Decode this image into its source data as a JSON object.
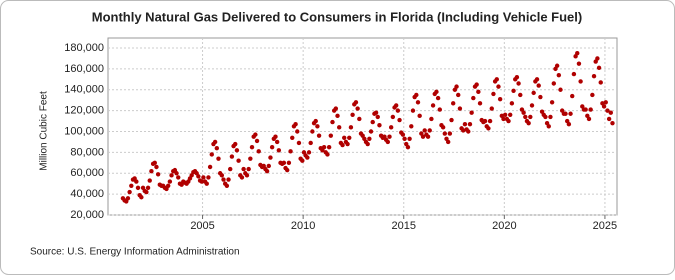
{
  "chart_data": {
    "type": "scatter",
    "title": "Monthly Natural Gas Delivered to Consumers in Florida (Including Vehicle Fuel)",
    "y_label": "Million Cubic Feet",
    "source": "Source: U.S. Energy Information Administration",
    "xlim": [
      2000.3,
      2025.6
    ],
    "xticks": [
      2005,
      2010,
      2015,
      2020,
      2025
    ],
    "ylim": [
      20000,
      180000
    ],
    "yticks": [
      {
        "value": 20000,
        "label": "20,000"
      },
      {
        "value": 40000,
        "label": "40,000"
      },
      {
        "value": 60000,
        "label": "60,000"
      },
      {
        "value": 80000,
        "label": "80,000"
      },
      {
        "value": 100000,
        "label": "100,000"
      },
      {
        "value": 120000,
        "label": "120,000"
      },
      {
        "value": 140000,
        "label": "140,000"
      },
      {
        "value": 160000,
        "label": "160,000"
      },
      {
        "value": 180000,
        "label": "180,000"
      }
    ],
    "grid": true,
    "x": [
      "2001-01",
      "2001-02",
      "2001-03",
      "2001-04",
      "2001-05",
      "2001-06",
      "2001-07",
      "2001-08",
      "2001-09",
      "2001-10",
      "2001-11",
      "2001-12",
      "2002-01",
      "2002-02",
      "2002-03",
      "2002-04",
      "2002-05",
      "2002-06",
      "2002-07",
      "2002-08",
      "2002-09",
      "2002-10",
      "2002-11",
      "2002-12",
      "2003-01",
      "2003-02",
      "2003-03",
      "2003-04",
      "2003-05",
      "2003-06",
      "2003-07",
      "2003-08",
      "2003-09",
      "2003-10",
      "2003-11",
      "2003-12",
      "2004-01",
      "2004-02",
      "2004-03",
      "2004-04",
      "2004-05",
      "2004-06",
      "2004-07",
      "2004-08",
      "2004-09",
      "2004-10",
      "2004-11",
      "2004-12",
      "2005-01",
      "2005-02",
      "2005-03",
      "2005-04",
      "2005-05",
      "2005-06",
      "2005-07",
      "2005-08",
      "2005-09",
      "2005-10",
      "2005-11",
      "2005-12",
      "2006-01",
      "2006-02",
      "2006-03",
      "2006-04",
      "2006-05",
      "2006-06",
      "2006-07",
      "2006-08",
      "2006-09",
      "2006-10",
      "2006-11",
      "2006-12",
      "2007-01",
      "2007-02",
      "2007-03",
      "2007-04",
      "2007-05",
      "2007-06",
      "2007-07",
      "2007-08",
      "2007-09",
      "2007-10",
      "2007-11",
      "2007-12",
      "2008-01",
      "2008-02",
      "2008-03",
      "2008-04",
      "2008-05",
      "2008-06",
      "2008-07",
      "2008-08",
      "2008-09",
      "2008-10",
      "2008-11",
      "2008-12",
      "2009-01",
      "2009-02",
      "2009-03",
      "2009-04",
      "2009-05",
      "2009-06",
      "2009-07",
      "2009-08",
      "2009-09",
      "2009-10",
      "2009-11",
      "2009-12",
      "2010-01",
      "2010-02",
      "2010-03",
      "2010-04",
      "2010-05",
      "2010-06",
      "2010-07",
      "2010-08",
      "2010-09",
      "2010-10",
      "2010-11",
      "2010-12",
      "2011-01",
      "2011-02",
      "2011-03",
      "2011-04",
      "2011-05",
      "2011-06",
      "2011-07",
      "2011-08",
      "2011-09",
      "2011-10",
      "2011-11",
      "2011-12",
      "2012-01",
      "2012-02",
      "2012-03",
      "2012-04",
      "2012-05",
      "2012-06",
      "2012-07",
      "2012-08",
      "2012-09",
      "2012-10",
      "2012-11",
      "2012-12",
      "2013-01",
      "2013-02",
      "2013-03",
      "2013-04",
      "2013-05",
      "2013-06",
      "2013-07",
      "2013-08",
      "2013-09",
      "2013-10",
      "2013-11",
      "2013-12",
      "2014-01",
      "2014-02",
      "2014-03",
      "2014-04",
      "2014-05",
      "2014-06",
      "2014-07",
      "2014-08",
      "2014-09",
      "2014-10",
      "2014-11",
      "2014-12",
      "2015-01",
      "2015-02",
      "2015-03",
      "2015-04",
      "2015-05",
      "2015-06",
      "2015-07",
      "2015-08",
      "2015-09",
      "2015-10",
      "2015-11",
      "2015-12",
      "2016-01",
      "2016-02",
      "2016-03",
      "2016-04",
      "2016-05",
      "2016-06",
      "2016-07",
      "2016-08",
      "2016-09",
      "2016-10",
      "2016-11",
      "2016-12",
      "2017-01",
      "2017-02",
      "2017-03",
      "2017-04",
      "2017-05",
      "2017-06",
      "2017-07",
      "2017-08",
      "2017-09",
      "2017-10",
      "2017-11",
      "2017-12",
      "2018-01",
      "2018-02",
      "2018-03",
      "2018-04",
      "2018-05",
      "2018-06",
      "2018-07",
      "2018-08",
      "2018-09",
      "2018-10",
      "2018-11",
      "2018-12",
      "2019-01",
      "2019-02",
      "2019-03",
      "2019-04",
      "2019-05",
      "2019-06",
      "2019-07",
      "2019-08",
      "2019-09",
      "2019-10",
      "2019-11",
      "2019-12",
      "2020-01",
      "2020-02",
      "2020-03",
      "2020-04",
      "2020-05",
      "2020-06",
      "2020-07",
      "2020-08",
      "2020-09",
      "2020-10",
      "2020-11",
      "2020-12",
      "2021-01",
      "2021-02",
      "2021-03",
      "2021-04",
      "2021-05",
      "2021-06",
      "2021-07",
      "2021-08",
      "2021-09",
      "2021-10",
      "2021-11",
      "2021-12",
      "2022-01",
      "2022-02",
      "2022-03",
      "2022-04",
      "2022-05",
      "2022-06",
      "2022-07",
      "2022-08",
      "2022-09",
      "2022-10",
      "2022-11",
      "2022-12",
      "2023-01",
      "2023-02",
      "2023-03",
      "2023-04",
      "2023-05",
      "2023-06",
      "2023-07",
      "2023-08",
      "2023-09",
      "2023-10",
      "2023-11",
      "2023-12",
      "2024-01",
      "2024-02",
      "2024-03",
      "2024-04",
      "2024-05",
      "2024-06",
      "2024-07",
      "2024-08",
      "2024-09",
      "2024-10",
      "2024-11",
      "2024-12",
      "2025-01",
      "2025-02",
      "2025-03",
      "2025-04",
      "2025-05"
    ],
    "series": [
      {
        "color": "#b00000",
        "values": [
          36000,
          34000,
          33000,
          36000,
          42000,
          48000,
          54000,
          55000,
          52000,
          46000,
          39000,
          37000,
          46000,
          43000,
          42000,
          46000,
          53000,
          62000,
          69000,
          70000,
          66000,
          59000,
          49000,
          48000,
          48000,
          46000,
          45000,
          48000,
          52000,
          58000,
          62000,
          63000,
          60000,
          56000,
          50000,
          49000,
          52000,
          51000,
          50000,
          52000,
          55000,
          58000,
          61000,
          62000,
          60000,
          57000,
          53000,
          52000,
          56000,
          52000,
          50000,
          56000,
          66000,
          78000,
          88000,
          90000,
          84000,
          74000,
          60000,
          58000,
          54000,
          50000,
          48000,
          54000,
          64000,
          76000,
          86000,
          88000,
          82000,
          72000,
          58000,
          56000,
          64000,
          60000,
          58000,
          64000,
          74000,
          85000,
          95000,
          97000,
          91000,
          81000,
          68000,
          66000,
          67000,
          64000,
          62000,
          67000,
          75000,
          85000,
          93000,
          95000,
          90000,
          82000,
          70000,
          69000,
          70000,
          65000,
          63000,
          70000,
          81000,
          94000,
          105000,
          107000,
          100000,
          89000,
          74000,
          72000,
          80000,
          77000,
          75000,
          80000,
          89000,
          100000,
          108000,
          110000,
          105000,
          96000,
          84000,
          82000,
          85000,
          80000,
          78000,
          85000,
          96000,
          109000,
          120000,
          122000,
          115000,
          104000,
          89000,
          87000,
          94000,
          90000,
          88000,
          94000,
          104000,
          116000,
          126000,
          128000,
          122000,
          112000,
          98000,
          96000,
          93000,
          90000,
          88000,
          93000,
          100000,
          109000,
          117000,
          118000,
          114000,
          106000,
          96000,
          94000,
          95000,
          92000,
          90000,
          95000,
          104000,
          114000,
          123000,
          125000,
          120000,
          111000,
          99000,
          97000,
          93000,
          88000,
          85000,
          93000,
          105000,
          120000,
          133000,
          135000,
          128000,
          115000,
          98000,
          95000,
          101000,
          97000,
          95000,
          101000,
          112000,
          125000,
          136000,
          138000,
          132000,
          121000,
          106000,
          104000,
          98000,
          93000,
          90000,
          98000,
          111000,
          127000,
          140000,
          143000,
          135000,
          122000,
          103000,
          101000,
          107000,
          102000,
          100000,
          107000,
          118000,
          132000,
          143000,
          145000,
          138000,
          127000,
          111000,
          109000,
          110000,
          105000,
          103000,
          110000,
          122000,
          136000,
          148000,
          150000,
          143000,
          131000,
          115000,
          112000,
          116000,
          112000,
          110000,
          116000,
          127000,
          139000,
          150000,
          152000,
          146000,
          135000,
          121000,
          118000,
          114000,
          110000,
          108000,
          114000,
          125000,
          137000,
          148000,
          150000,
          144000,
          133000,
          119000,
          116000,
          114000,
          108000,
          105000,
          114000,
          128000,
          146000,
          160000,
          163000,
          154000,
          140000,
          120000,
          117000,
          117000,
          110000,
          107000,
          117000,
          134000,
          155000,
          172000,
          175000,
          165000,
          148000,
          124000,
          121000,
          121000,
          115000,
          112000,
          121000,
          135000,
          153000,
          167000,
          170000,
          161000,
          147000,
          127000,
          124000,
          128000,
          120000,
          112000,
          118000,
          108000
        ]
      }
    ]
  }
}
